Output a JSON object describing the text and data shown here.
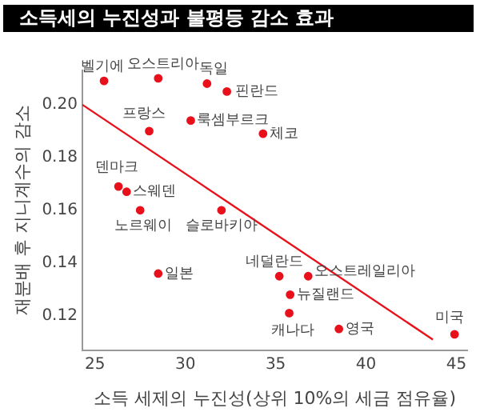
{
  "chart_data": {
    "type": "scatter",
    "title": "소득세의 누진성과 불평등 감소 효과",
    "xlabel": "소득 세제의 누진성(상위 10%의 세금 점유율)",
    "ylabel": "재분배 후 지니계수의 감소",
    "series": [
      {
        "marker": "circle",
        "color": "#e8111b",
        "x": [
          25.5,
          28.5,
          31.2,
          32.3,
          28.0,
          30.3,
          34.3,
          26.3,
          26.75,
          27.5,
          32.0,
          28.5,
          35.2,
          36.8,
          35.8,
          35.75,
          38.5,
          44.9
        ],
        "values": [
          0.209,
          0.21,
          0.208,
          0.205,
          0.19,
          0.194,
          0.189,
          0.169,
          0.167,
          0.16,
          0.16,
          0.136,
          0.135,
          0.135,
          0.128,
          0.121,
          0.115,
          0.113
        ]
      },
      {
        "type": "line",
        "color": "#e8111b",
        "x": [
          24.3,
          43.7
        ],
        "values": [
          0.2,
          0.111
        ]
      }
    ],
    "annotations": [
      {
        "text": "벨기에",
        "x": 25.5,
        "y": 0.209
      },
      {
        "text": "오스트리아",
        "x": 28.5,
        "y": 0.21
      },
      {
        "text": "독일",
        "x": 31.2,
        "y": 0.208
      },
      {
        "text": "핀란드",
        "x": 32.3,
        "y": 0.205
      },
      {
        "text": "프랑스",
        "x": 28.0,
        "y": 0.19
      },
      {
        "text": "룩셈부르크",
        "x": 30.3,
        "y": 0.194
      },
      {
        "text": "체코",
        "x": 34.3,
        "y": 0.189
      },
      {
        "text": "덴마크",
        "x": 26.3,
        "y": 0.169
      },
      {
        "text": "스웨덴",
        "x": 26.75,
        "y": 0.167
      },
      {
        "text": "노르웨이",
        "x": 27.5,
        "y": 0.16
      },
      {
        "text": "슬로바키아",
        "x": 32.0,
        "y": 0.16
      },
      {
        "text": "일본",
        "x": 28.5,
        "y": 0.136
      },
      {
        "text": "네덜란드",
        "x": 35.2,
        "y": 0.135
      },
      {
        "text": "오스트레일리아",
        "x": 36.8,
        "y": 0.135
      },
      {
        "text": "뉴질랜드",
        "x": 35.8,
        "y": 0.128
      },
      {
        "text": "캐나다",
        "x": 35.75,
        "y": 0.121
      },
      {
        "text": "영국",
        "x": 38.5,
        "y": 0.115
      },
      {
        "text": "미국",
        "x": 44.9,
        "y": 0.113
      }
    ],
    "xlim": [
      24.3,
      45.6
    ],
    "xticks": [
      25,
      30,
      35,
      40,
      45
    ],
    "ylim": [
      0.107,
      0.213
    ],
    "yticks": [
      {
        "value": 0.12,
        "label": "0.12"
      },
      {
        "value": 0.14,
        "label": "0.14"
      },
      {
        "value": 0.16,
        "label": "0.16"
      },
      {
        "value": 0.18,
        "label": "0.18"
      },
      {
        "value": 0.2,
        "label": "0.20"
      }
    ],
    "grid": false,
    "legend": false
  }
}
